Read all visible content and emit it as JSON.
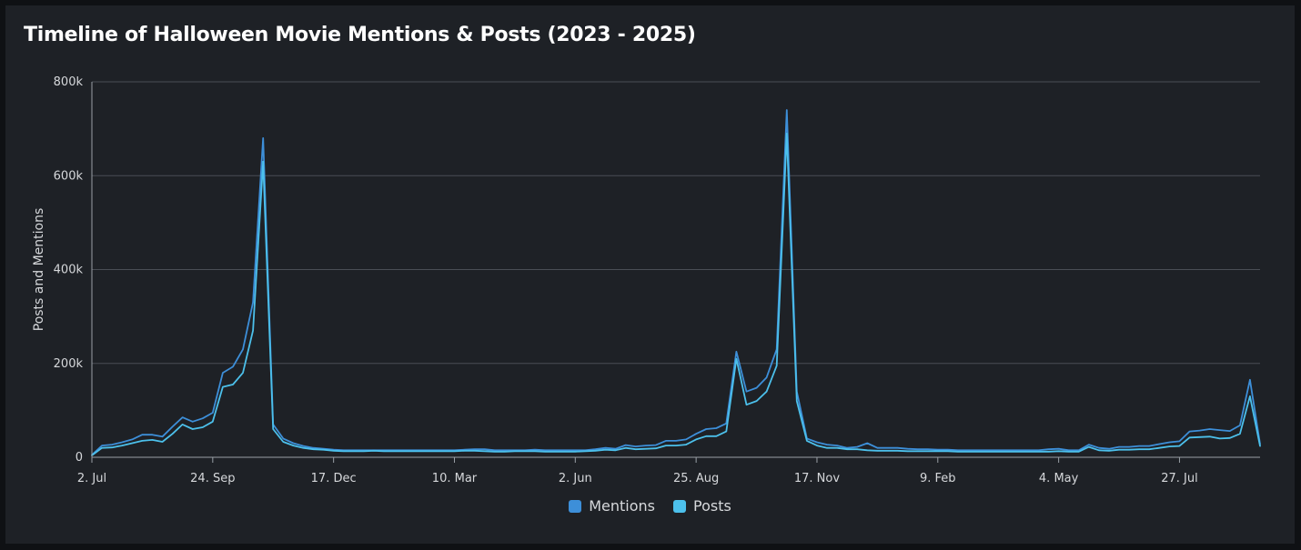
{
  "chart_data": {
    "type": "line",
    "title": "Timeline of Halloween Movie Mentions & Posts (2023 - 2025)",
    "ylabel": "Posts and Mentions",
    "xlabel": "",
    "ylim": [
      0,
      800000
    ],
    "yticks": [
      0,
      200000,
      400000,
      600000,
      800000
    ],
    "ytick_labels": [
      "0",
      "200k",
      "400k",
      "600k",
      "800k"
    ],
    "xticks": [
      0,
      12,
      24,
      36,
      48,
      60,
      72,
      84,
      96,
      108
    ],
    "xtick_labels": [
      "2. Jul",
      "24. Sep",
      "17. Dec",
      "10. Mar",
      "2. Jun",
      "25. Aug",
      "17. Nov",
      "9. Feb",
      "4. May",
      "27. Jul"
    ],
    "legend_position": "bottom-center",
    "grid": true,
    "x_unit": "weeks from 2. Jul 2023",
    "x_start": "2023-07-02",
    "x_step_days": 7,
    "series": [
      {
        "name": "Mentions",
        "color": "#3d8fd9",
        "values": [
          5000,
          25000,
          27000,
          32000,
          38000,
          48000,
          48000,
          44000,
          65000,
          85000,
          76000,
          83000,
          95000,
          180000,
          193000,
          230000,
          330000,
          680000,
          70000,
          40000,
          30000,
          24000,
          20000,
          18000,
          16000,
          15000,
          15000,
          15000,
          15000,
          15000,
          15000,
          15000,
          15000,
          15000,
          15000,
          15000,
          15000,
          16000,
          17000,
          17000,
          15000,
          15000,
          15000,
          15000,
          16000,
          15000,
          15000,
          15000,
          15000,
          15000,
          17000,
          20000,
          18000,
          26000,
          23000,
          25000,
          26000,
          35000,
          35000,
          38000,
          50000,
          60000,
          62000,
          72000,
          225000,
          140000,
          148000,
          170000,
          230000,
          740000,
          140000,
          40000,
          32000,
          27000,
          25000,
          20000,
          22000,
          30000,
          20000,
          20000,
          20000,
          18000,
          17000,
          17000,
          16000,
          16000,
          15000,
          15000,
          15000,
          15000,
          15000,
          15000,
          15000,
          15000,
          15000,
          17000,
          18000,
          15000,
          15000,
          27000,
          20000,
          18000,
          22000,
          22000,
          24000,
          24000,
          28000,
          32000,
          34000,
          55000,
          57000,
          60000,
          58000,
          56000,
          68000,
          165000,
          28000
        ],
        "_approx": true
      },
      {
        "name": "Posts",
        "color": "#4cc0eb",
        "values": [
          4000,
          20000,
          21000,
          25000,
          30000,
          35000,
          37000,
          33000,
          50000,
          70000,
          60000,
          64000,
          76000,
          150000,
          155000,
          180000,
          270000,
          630000,
          60000,
          33000,
          25000,
          20000,
          17000,
          16000,
          14000,
          13000,
          13000,
          13000,
          14000,
          13000,
          13000,
          13000,
          13000,
          13000,
          13000,
          13000,
          13000,
          14000,
          14000,
          13000,
          12000,
          12000,
          13000,
          13000,
          13000,
          12000,
          12000,
          12000,
          12000,
          13000,
          14000,
          16000,
          15000,
          20000,
          17000,
          18000,
          19000,
          25000,
          25000,
          27000,
          38000,
          45000,
          45000,
          55000,
          210000,
          112000,
          120000,
          140000,
          195000,
          690000,
          120000,
          35000,
          25000,
          20000,
          20000,
          17000,
          17000,
          15000,
          14000,
          14000,
          14000,
          13000,
          13000,
          13000,
          13000,
          13000,
          12000,
          12000,
          12000,
          12000,
          12000,
          12000,
          12000,
          12000,
          12000,
          12000,
          13000,
          12000,
          12000,
          22000,
          15000,
          14000,
          16000,
          16000,
          17000,
          17000,
          20000,
          23000,
          24000,
          42000,
          43000,
          44000,
          40000,
          41000,
          50000,
          130000,
          24000
        ],
        "_approx": true
      }
    ]
  }
}
